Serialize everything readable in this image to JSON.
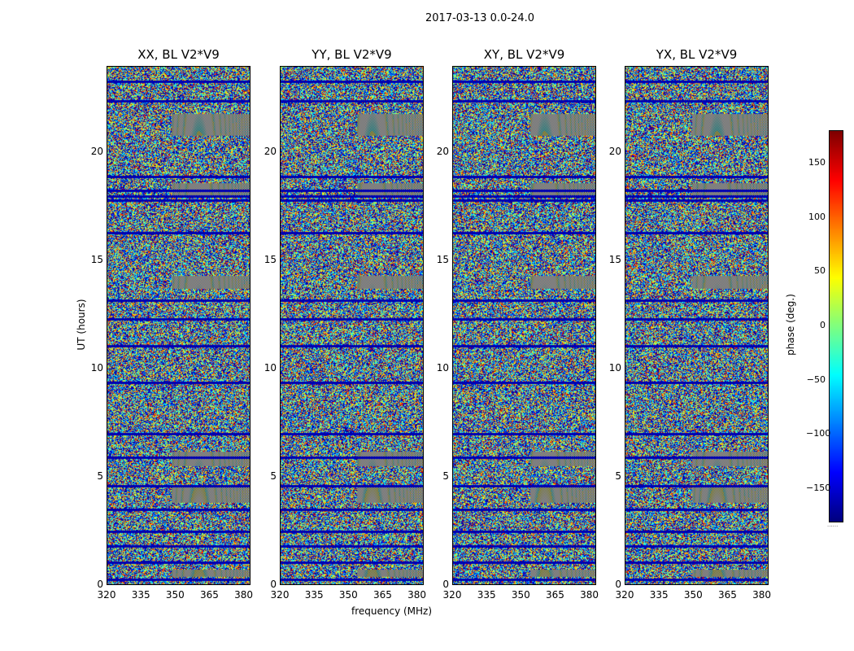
{
  "suptitle": "2017-03-13 0.0-24.0",
  "chart_data": {
    "type": "heatmap",
    "colormap": "jet",
    "panels": [
      {
        "title": "XX, BL V2*V9",
        "seed": 11
      },
      {
        "title": "YY, BL V2*V9",
        "seed": 23
      },
      {
        "title": "XY, BL V2*V9",
        "seed": 37
      },
      {
        "title": "YX, BL V2*V9",
        "seed": 53
      }
    ],
    "xlabel": "frequency (MHz)",
    "ylabel": "UT (hours)",
    "xlim": [
      320,
      383
    ],
    "ylim": [
      0,
      24
    ],
    "xticks": [
      "320",
      "335",
      "350",
      "365",
      "380"
    ],
    "xtick_values": [
      320,
      335,
      350,
      365,
      380
    ],
    "yticks": [
      "0",
      "5",
      "10",
      "15",
      "20"
    ],
    "ytick_values": [
      0,
      5,
      10,
      15,
      20
    ],
    "colorbar": {
      "label": "phase (deg.)",
      "range": [
        -180,
        180
      ],
      "ticks": [
        "150",
        "100",
        "50",
        "0",
        "−50",
        "−100",
        "−150"
      ],
      "tick_values": [
        150,
        100,
        50,
        0,
        -50,
        -100,
        -150
      ],
      "offset_text": "......"
    },
    "flagged_hours": [
      0.25,
      1.05,
      1.8,
      2.5,
      3.5,
      4.6,
      5.9,
      7.0,
      9.35,
      11.05,
      12.3,
      13.15,
      16.3,
      17.8,
      18.0,
      18.25,
      18.9,
      22.4,
      23.3
    ],
    "fringe_hours": [
      [
        3.8,
        4.6
      ],
      [
        5.5,
        6.2
      ],
      [
        13.7,
        14.3
      ],
      [
        20.8,
        21.8
      ],
      [
        0.4,
        0.75
      ],
      [
        18.0,
        18.6
      ]
    ]
  }
}
